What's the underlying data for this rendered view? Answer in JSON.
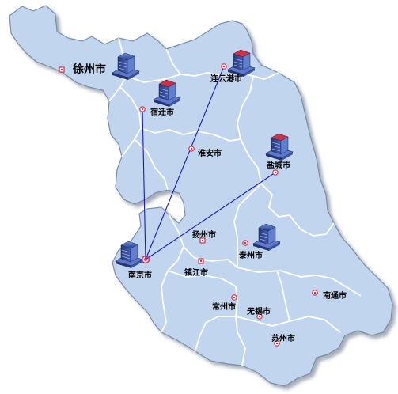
{
  "map": {
    "colors": {
      "land": "#c2d5ef",
      "border": "#ffffff",
      "outline": "#7d8fa6",
      "route": "#1a1ab8",
      "marker": "#d9304a"
    },
    "cities": [
      {
        "id": "xuzhou",
        "label": "徐州市",
        "icon": "server-icon"
      },
      {
        "id": "lianyungang",
        "label": "连云港市",
        "icon": "server-icon"
      },
      {
        "id": "suqian",
        "label": "宿迁市",
        "icon": "server-icon"
      },
      {
        "id": "huaian",
        "label": "淮安市"
      },
      {
        "id": "yancheng",
        "label": "盐城市",
        "icon": "server-icon"
      },
      {
        "id": "yangzhou",
        "label": "扬州市"
      },
      {
        "id": "taizhou",
        "label": "泰州市",
        "icon": "server-icon"
      },
      {
        "id": "nanjing",
        "label": "南京市",
        "icon": "server-icon"
      },
      {
        "id": "zhenjiang",
        "label": "镇江市"
      },
      {
        "id": "changzhou",
        "label": "常州市"
      },
      {
        "id": "wuxi",
        "label": "无锡市"
      },
      {
        "id": "nantong",
        "label": "南通市"
      },
      {
        "id": "suzhou",
        "label": "苏州市"
      }
    ],
    "connections": [
      {
        "from": "suqian",
        "to": "nanjing"
      },
      {
        "from": "lianyungang",
        "to": "nanjing"
      },
      {
        "from": "yancheng",
        "to": "nanjing"
      }
    ]
  }
}
